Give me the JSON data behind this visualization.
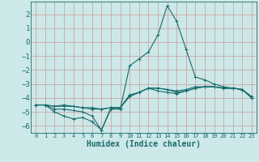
{
  "title": "",
  "xlabel": "Humidex (Indice chaleur)",
  "ylabel": "",
  "xlim": [
    -0.5,
    23.5
  ],
  "ylim": [
    -6.5,
    2.9
  ],
  "yticks": [
    2,
    1,
    0,
    -1,
    -2,
    -3,
    -4,
    -5,
    -6
  ],
  "xticks": [
    0,
    1,
    2,
    3,
    4,
    5,
    6,
    7,
    8,
    9,
    10,
    11,
    12,
    13,
    14,
    15,
    16,
    17,
    18,
    19,
    20,
    21,
    22,
    23
  ],
  "bg_color": "#cce8e8",
  "grid_color": "#cc9999",
  "line_color": "#1a6b6b",
  "line1_y": [
    -4.5,
    -4.5,
    -4.8,
    -4.8,
    -4.9,
    -5.0,
    -5.3,
    -6.3,
    -4.7,
    -4.7,
    -3.9,
    -3.6,
    -3.3,
    -3.5,
    -3.6,
    -3.7,
    -3.5,
    -3.3,
    -3.2,
    -3.2,
    -3.3,
    -3.3,
    -3.4,
    -4.0
  ],
  "line2_y": [
    -4.5,
    -4.5,
    -4.6,
    -4.5,
    -4.6,
    -4.7,
    -4.8,
    -4.8,
    -4.7,
    -4.7,
    -3.8,
    -3.6,
    -3.3,
    -3.3,
    -3.4,
    -3.6,
    -3.5,
    -3.3,
    -3.2,
    -3.2,
    -3.3,
    -3.3,
    -3.4,
    -4.0
  ],
  "line3_y": [
    -4.5,
    -4.5,
    -4.6,
    -4.6,
    -4.6,
    -4.7,
    -4.7,
    -4.8,
    -4.7,
    -4.7,
    -3.8,
    -3.6,
    -3.3,
    -3.3,
    -3.4,
    -3.5,
    -3.4,
    -3.2,
    -3.2,
    -3.2,
    -3.3,
    -3.3,
    -3.4,
    -3.9
  ],
  "line4_y": [
    -4.5,
    -4.5,
    -5.0,
    -5.3,
    -5.5,
    -5.4,
    -5.7,
    -6.3,
    -4.8,
    -4.8,
    -1.7,
    -1.2,
    -0.7,
    0.5,
    2.6,
    1.5,
    -0.5,
    -2.5,
    -2.7,
    -3.0,
    -3.2,
    -3.3,
    -3.4,
    -4.0
  ]
}
